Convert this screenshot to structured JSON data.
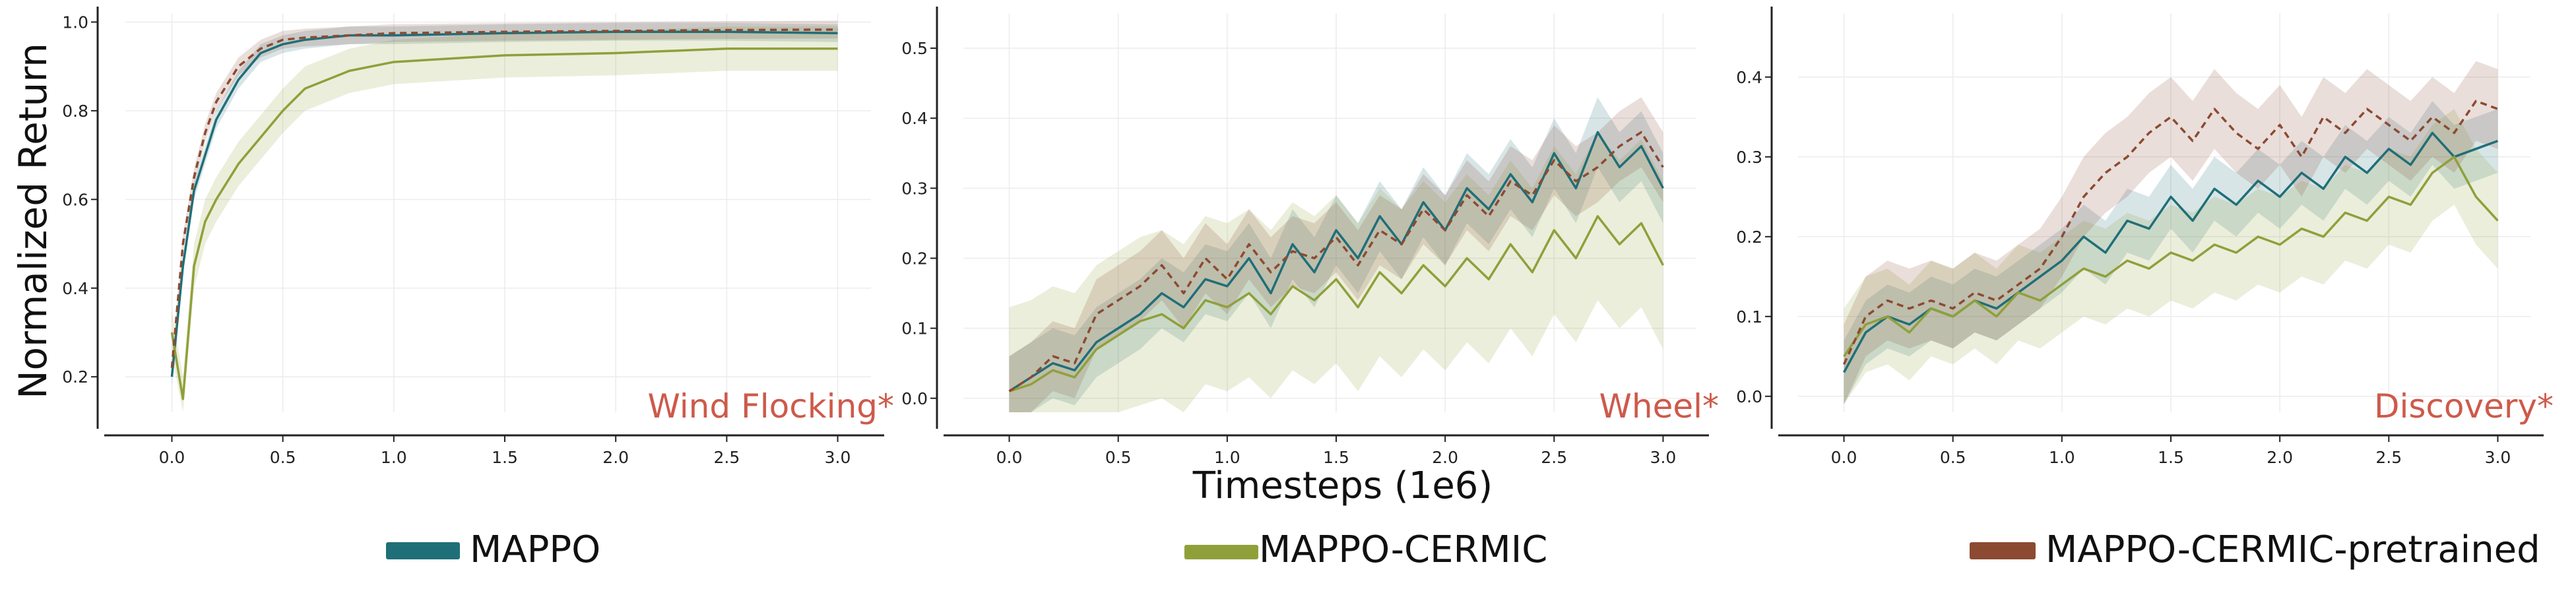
{
  "figure": {
    "ylabel": "Normalized Return",
    "xlabel": "Timesteps (1e6)",
    "legend": [
      {
        "name": "MAPPO",
        "color": "#1f6f78"
      },
      {
        "name": "MAPPO-CERMIC",
        "color": "#8fa03a"
      },
      {
        "name": "MAPPO-CERMIC-pretrained",
        "color": "#8c4a32"
      }
    ]
  },
  "chart_data": [
    {
      "type": "line",
      "title": "Wind Flocking*",
      "xlabel": "Timesteps (1e6)",
      "ylabel": "Normalized Return",
      "xlim": [
        -0.15,
        3.15
      ],
      "ylim": [
        0.12,
        1.02
      ],
      "xticks": [
        "0.0",
        "0.5",
        "1.0",
        "1.5",
        "2.0",
        "2.5",
        "3.0"
      ],
      "yticks": [
        "0.2",
        "0.4",
        "0.6",
        "0.8",
        "1.0"
      ],
      "grid": true,
      "x": [
        0.0,
        0.05,
        0.1,
        0.15,
        0.2,
        0.3,
        0.4,
        0.5,
        0.6,
        0.8,
        1.0,
        1.5,
        2.0,
        2.5,
        3.0
      ],
      "series": [
        {
          "name": "MAPPO",
          "color": "#1f6f78",
          "dash": false,
          "values": [
            0.2,
            0.45,
            0.62,
            0.7,
            0.78,
            0.87,
            0.93,
            0.95,
            0.96,
            0.97,
            0.97,
            0.975,
            0.978,
            0.978,
            0.975
          ],
          "band": 0.02
        },
        {
          "name": "MAPPO-CERMIC",
          "color": "#8fa03a",
          "dash": false,
          "values": [
            0.3,
            0.15,
            0.45,
            0.55,
            0.6,
            0.68,
            0.74,
            0.8,
            0.85,
            0.89,
            0.91,
            0.925,
            0.93,
            0.94,
            0.94
          ],
          "band": 0.05
        },
        {
          "name": "MAPPO-CERMIC-pretrained",
          "color": "#8c4a32",
          "dash": true,
          "values": [
            0.22,
            0.5,
            0.65,
            0.75,
            0.82,
            0.9,
            0.94,
            0.96,
            0.965,
            0.97,
            0.975,
            0.978,
            0.98,
            0.982,
            0.983
          ],
          "band": 0.02
        }
      ]
    },
    {
      "type": "line",
      "title": "Wheel*",
      "xlabel": "Timesteps (1e6)",
      "ylabel": "",
      "xlim": [
        -0.15,
        3.15
      ],
      "ylim": [
        -0.02,
        0.55
      ],
      "xticks": [
        "0.0",
        "0.5",
        "1.0",
        "1.5",
        "2.0",
        "2.5",
        "3.0"
      ],
      "yticks": [
        "0.0",
        "0.1",
        "0.2",
        "0.3",
        "0.4",
        "0.5"
      ],
      "grid": true,
      "x": [
        0.0,
        0.1,
        0.2,
        0.3,
        0.4,
        0.5,
        0.6,
        0.7,
        0.8,
        0.9,
        1.0,
        1.1,
        1.2,
        1.3,
        1.4,
        1.5,
        1.6,
        1.7,
        1.8,
        1.9,
        2.0,
        2.1,
        2.2,
        2.3,
        2.4,
        2.5,
        2.6,
        2.7,
        2.8,
        2.9,
        3.0
      ],
      "series": [
        {
          "name": "MAPPO",
          "color": "#1f6f78",
          "dash": false,
          "values": [
            0.01,
            0.03,
            0.05,
            0.04,
            0.08,
            0.1,
            0.12,
            0.15,
            0.13,
            0.17,
            0.16,
            0.2,
            0.15,
            0.22,
            0.18,
            0.24,
            0.2,
            0.26,
            0.22,
            0.28,
            0.24,
            0.3,
            0.27,
            0.32,
            0.28,
            0.35,
            0.3,
            0.38,
            0.33,
            0.36,
            0.3
          ],
          "band": 0.05
        },
        {
          "name": "MAPPO-CERMIC",
          "color": "#8fa03a",
          "dash": false,
          "values": [
            0.01,
            0.02,
            0.04,
            0.03,
            0.07,
            0.09,
            0.11,
            0.12,
            0.1,
            0.14,
            0.13,
            0.15,
            0.12,
            0.16,
            0.14,
            0.17,
            0.13,
            0.18,
            0.15,
            0.19,
            0.16,
            0.2,
            0.17,
            0.22,
            0.18,
            0.24,
            0.2,
            0.26,
            0.22,
            0.25,
            0.19
          ],
          "band": 0.12
        },
        {
          "name": "MAPPO-CERMIC-pretrained",
          "color": "#8c4a32",
          "dash": true,
          "values": [
            0.01,
            0.03,
            0.06,
            0.05,
            0.12,
            0.14,
            0.16,
            0.19,
            0.15,
            0.2,
            0.17,
            0.22,
            0.18,
            0.21,
            0.2,
            0.23,
            0.19,
            0.24,
            0.22,
            0.27,
            0.24,
            0.29,
            0.26,
            0.31,
            0.29,
            0.34,
            0.31,
            0.33,
            0.36,
            0.38,
            0.33
          ],
          "band": 0.05
        }
      ]
    },
    {
      "type": "line",
      "title": "Discovery*",
      "xlabel": "Timesteps (1e6)",
      "ylabel": "",
      "xlim": [
        -0.15,
        3.15
      ],
      "ylim": [
        -0.02,
        0.48
      ],
      "xticks": [
        "0.0",
        "0.5",
        "1.0",
        "1.5",
        "2.0",
        "2.5",
        "3.0"
      ],
      "yticks": [
        "0.0",
        "0.1",
        "0.2",
        "0.3",
        "0.4"
      ],
      "grid": true,
      "x": [
        0.0,
        0.1,
        0.2,
        0.3,
        0.4,
        0.5,
        0.6,
        0.7,
        0.8,
        0.9,
        1.0,
        1.1,
        1.2,
        1.3,
        1.4,
        1.5,
        1.6,
        1.7,
        1.8,
        1.9,
        2.0,
        2.1,
        2.2,
        2.3,
        2.4,
        2.5,
        2.6,
        2.7,
        2.8,
        2.9,
        3.0
      ],
      "series": [
        {
          "name": "MAPPO",
          "color": "#1f6f78",
          "dash": false,
          "values": [
            0.03,
            0.08,
            0.1,
            0.09,
            0.11,
            0.1,
            0.12,
            0.11,
            0.13,
            0.15,
            0.17,
            0.2,
            0.18,
            0.22,
            0.21,
            0.25,
            0.22,
            0.26,
            0.24,
            0.27,
            0.25,
            0.28,
            0.26,
            0.3,
            0.28,
            0.31,
            0.29,
            0.33,
            0.3,
            0.31,
            0.32
          ],
          "band": 0.04
        },
        {
          "name": "MAPPO-CERMIC",
          "color": "#8fa03a",
          "dash": false,
          "values": [
            0.05,
            0.09,
            0.1,
            0.08,
            0.11,
            0.1,
            0.12,
            0.1,
            0.13,
            0.12,
            0.14,
            0.16,
            0.15,
            0.17,
            0.16,
            0.18,
            0.17,
            0.19,
            0.18,
            0.2,
            0.19,
            0.21,
            0.2,
            0.23,
            0.22,
            0.25,
            0.24,
            0.28,
            0.3,
            0.25,
            0.22
          ],
          "band": 0.06
        },
        {
          "name": "MAPPO-CERMIC-pretrained",
          "color": "#8c4a32",
          "dash": true,
          "values": [
            0.04,
            0.1,
            0.12,
            0.11,
            0.12,
            0.11,
            0.13,
            0.12,
            0.14,
            0.16,
            0.2,
            0.25,
            0.28,
            0.3,
            0.33,
            0.35,
            0.32,
            0.36,
            0.33,
            0.31,
            0.34,
            0.3,
            0.35,
            0.33,
            0.36,
            0.34,
            0.32,
            0.35,
            0.33,
            0.37,
            0.36
          ],
          "band": 0.05
        }
      ]
    }
  ]
}
